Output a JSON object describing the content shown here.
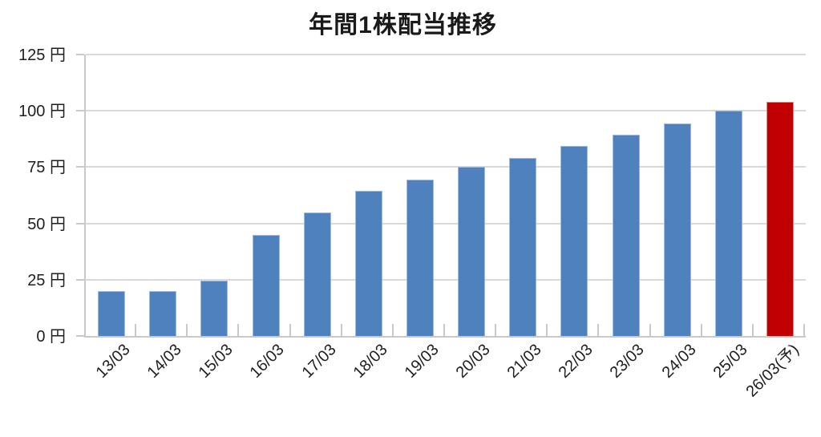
{
  "chart_data": {
    "type": "bar",
    "title": "年間1株配当推移",
    "unit": "円",
    "categories": [
      "13/03",
      "14/03",
      "15/03",
      "16/03",
      "17/03",
      "18/03",
      "19/03",
      "20/03",
      "21/03",
      "22/03",
      "23/03",
      "24/03",
      "25/03",
      "26/03(予)"
    ],
    "values": [
      20,
      20,
      24.5,
      45,
      55,
      64.5,
      69.5,
      75,
      79,
      84.5,
      89.5,
      94.5,
      100,
      104
    ],
    "highlight_index": 13,
    "ylim": [
      0,
      125
    ],
    "y_ticks": [
      0,
      25,
      50,
      75,
      100,
      125
    ],
    "y_tick_labels": [
      "0 円",
      "25 円",
      "50 円",
      "75 円",
      "100 円",
      "125 円"
    ],
    "grid": true,
    "legend": "none",
    "colors": {
      "bar": "#4e81bd",
      "bar_border": "#9db9dc",
      "highlight": "#c00000",
      "highlight_border": "#d58f8f",
      "gridline": "#d9d9d9",
      "axis": "#c9c9c9",
      "text": "#1f1f1f",
      "title_text": "#1a1a1a"
    }
  }
}
